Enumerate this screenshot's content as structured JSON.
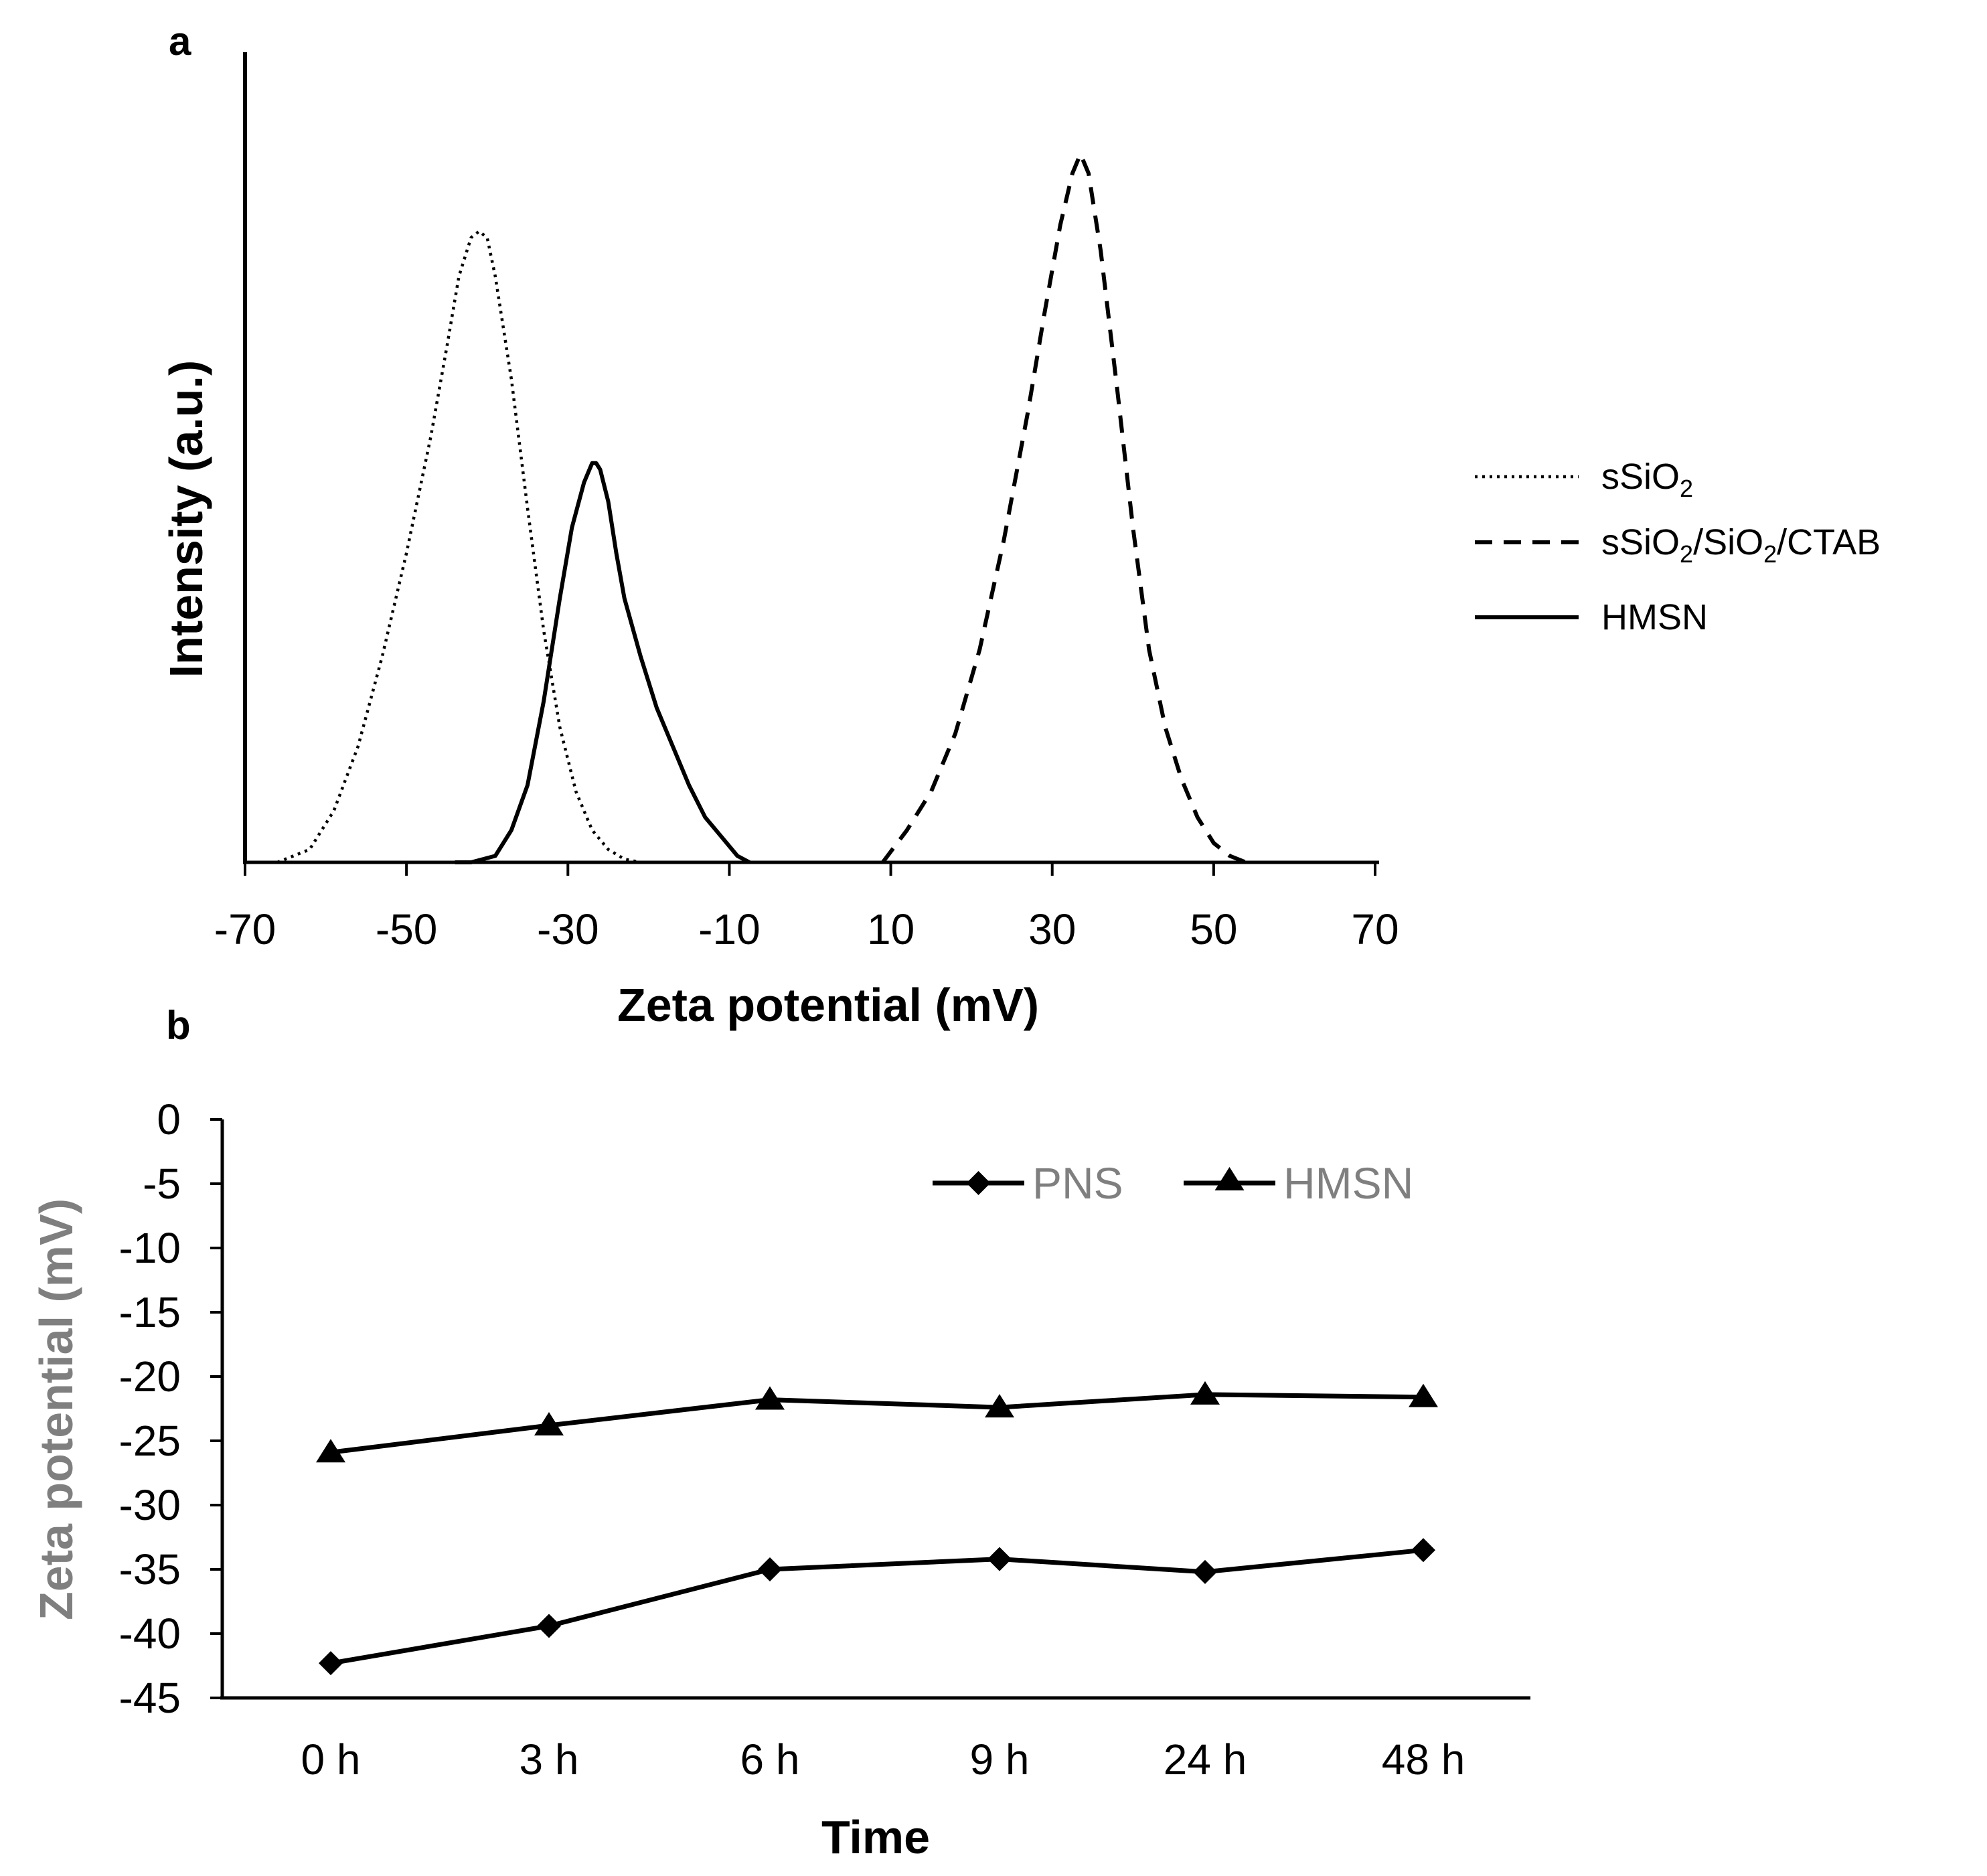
{
  "chart_data": [
    {
      "panel": "a",
      "type": "line",
      "title": "",
      "xlabel": "Zeta potential (mV)",
      "ylabel": "Intensity (a.u.)",
      "xlim": [
        -70,
        70
      ],
      "ylim": [
        0,
        110
      ],
      "xticks": [
        "-70",
        "-50",
        "-30",
        "-10",
        "10",
        "30",
        "50",
        "70"
      ],
      "legend_position": "right",
      "series": [
        {
          "name": "sSiO2",
          "label_main": "sSiO",
          "label_sub": "2",
          "style": "dotted",
          "color": "#000000",
          "x": [
            -66,
            -62,
            -59,
            -56,
            -53,
            -50,
            -47,
            -45,
            -43.5,
            -42,
            -41,
            -40,
            -39,
            -37,
            -35,
            -33,
            -31,
            -29,
            -27,
            -25,
            -23,
            -21
          ],
          "y": [
            0,
            2,
            8,
            18,
            32,
            48,
            66,
            80,
            91,
            97,
            98,
            97,
            91,
            75,
            55,
            36,
            21,
            11,
            5,
            2,
            0.5,
            0
          ]
        },
        {
          "name": "sSiO2/SiO2/CTAB",
          "label_main": "sSiO",
          "label_sub": "2",
          "label_mid": "/SiO",
          "label_sub2": "2",
          "label_tail": "/CTAB",
          "style": "dashed",
          "color": "#000000",
          "x": [
            9,
            12,
            15,
            18,
            21,
            24,
            27,
            29,
            31,
            32.5,
            33.5,
            34.5,
            36,
            38,
            40,
            42,
            44,
            46,
            48,
            50,
            52,
            54
          ],
          "y": [
            0,
            5,
            11,
            20,
            33,
            50,
            70,
            85,
            99,
            107,
            110,
            107,
            95,
            74,
            52,
            33,
            21,
            13,
            7,
            3,
            1,
            0
          ]
        },
        {
          "name": "HMSN",
          "label_main": "HMSN",
          "style": "solid",
          "color": "#000000",
          "x": [
            -44,
            -42,
            -39,
            -37,
            -35,
            -33,
            -31,
            -29.5,
            -28,
            -27,
            -26.5,
            -26,
            -25,
            -24,
            -23,
            -21,
            -19,
            -17,
            -15,
            -13,
            -11,
            -9,
            -7.5
          ],
          "y": [
            0,
            0,
            1,
            5,
            12,
            25,
            41,
            52,
            59,
            62,
            62,
            61,
            56,
            48,
            41,
            32,
            24,
            18,
            12,
            7,
            4,
            1,
            0
          ]
        }
      ]
    },
    {
      "panel": "b",
      "type": "line",
      "title": "",
      "xlabel": "Time",
      "ylabel": "Zeta potential (mV)",
      "categories": [
        "0 h",
        "3 h",
        "6 h",
        "9 h",
        "24 h",
        "48 h"
      ],
      "ylim": [
        -45,
        0
      ],
      "yticks": [
        "0",
        "-5",
        "-10",
        "-15",
        "-20",
        "-25",
        "-30",
        "-35",
        "-40",
        "-45"
      ],
      "legend_position": "top-right",
      "series": [
        {
          "name": "PNS",
          "marker": "diamond",
          "values": [
            -42.3,
            -39.4,
            -35.0,
            -34.2,
            -35.2,
            -33.5
          ]
        },
        {
          "name": "HMSN",
          "marker": "triangle",
          "values": [
            -25.9,
            -23.8,
            -21.8,
            -22.4,
            -21.4,
            -21.6
          ]
        }
      ]
    }
  ]
}
